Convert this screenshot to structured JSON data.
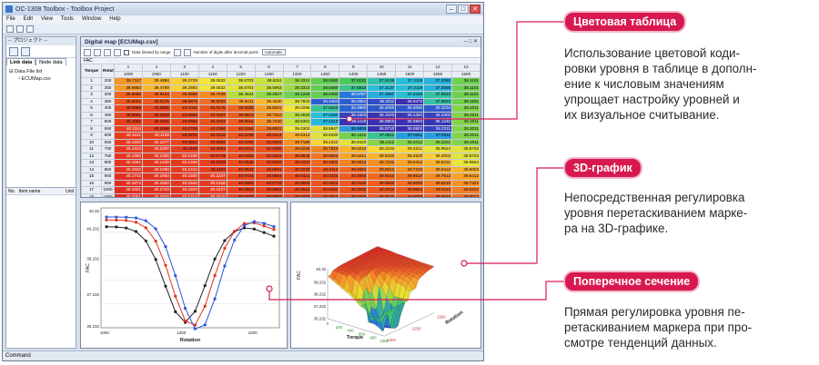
{
  "window": {
    "title": "OC-1308 Toolbox - Toolbox Project",
    "menu": [
      "File",
      "Edit",
      "View",
      "Tools",
      "Window",
      "Help"
    ],
    "status": "Command"
  },
  "left_panel": {
    "header": "-- プロジェクト --",
    "tabs": [
      "Link data",
      "Node data"
    ],
    "tree_root": "Data File list",
    "tree_leaf": "ECUMap.csv",
    "grid_headers": [
      "No.",
      "Item name",
      "Unit"
    ]
  },
  "map": {
    "title": "Digital map [ECUMap.csv]",
    "window_btns": "– □ ✕",
    "check_label": "Data limited by range",
    "digits_label": "Number of digits after decimal point:",
    "digits_value": "Automatic",
    "fac_label": "FAC",
    "row_axis": "Torque",
    "col_axis": "Rotation",
    "col_index": [
      "1",
      "2",
      "3",
      "4",
      "5",
      "6",
      "7",
      "8",
      "9",
      "10",
      "11",
      "12",
      "13"
    ],
    "col_values": [
      "1000",
      "1050",
      "1100",
      "1150",
      "1200",
      "1250",
      "1300",
      "1350",
      "1400",
      "1450",
      "1500",
      "1550",
      "1600"
    ],
    "row_index": [
      "1",
      "2",
      "3",
      "4",
      "5",
      "6",
      "7",
      "8",
      "9",
      "10",
      "11",
      "12",
      "13",
      "14",
      "15",
      "16",
      "17",
      "18",
      "19",
      "20"
    ],
    "row_values": [
      "200",
      "250",
      "300",
      "350",
      "400",
      "450",
      "500",
      "550",
      "600",
      "650",
      "700",
      "750",
      "800",
      "850",
      "900",
      "950",
      "1000",
      "1050",
      "1100",
      "1150"
    ],
    "rows": [
      [
        "39.7117",
        "39.4884",
        "39.2729",
        "39.0532",
        "38.8703",
        "38.6311",
        "38.3310",
        "38.0480",
        "37.9131",
        "37.5138",
        "37.3119",
        "37.2050",
        "38.1101"
      ],
      [
        "39.6684",
        "39.4789",
        "39.2593",
        "39.0532",
        "38.8703",
        "38.5963",
        "38.3310",
        "38.0480",
        "37.6810",
        "37.3137",
        "37.3119",
        "37.2050",
        "38.1101"
      ],
      [
        "39.9585",
        "39.9423",
        "39.8899",
        "39.7649",
        "38.4624",
        "38.2827",
        "38.1220",
        "38.0480",
        "36.6787",
        "37.1897",
        "37.3449",
        "37.5524",
        "38.1101"
      ],
      [
        "40.0022",
        "40.0175",
        "39.9879",
        "39.9033",
        "39.6411",
        "39.4530",
        "38.7823",
        "36.4453",
        "36.4551",
        "36.3211",
        "36.0473",
        "37.5524",
        "38.1101"
      ],
      [
        "40.0659",
        "40.0666",
        "40.0040",
        "40.0176",
        "39.9485",
        "39.6531",
        "39.0285",
        "37.6220",
        "36.4960",
        "36.4000",
        "36.4045",
        "36.4234",
        "38.2011"
      ],
      [
        "40.0861",
        "40.1010",
        "40.0584",
        "40.0267",
        "39.9813",
        "39.7310",
        "38.4620",
        "37.3180",
        "36.2403",
        "36.1020",
        "36.1340",
        "36.2402",
        "38.2011"
      ],
      [
        "40.1081",
        "40.1021",
        "40.0663",
        "40.0334",
        "39.9916",
        "39.7340",
        "38.5401",
        "37.2410",
        "36.1120",
        "36.0802",
        "36.0802",
        "36.1240",
        "38.2011"
      ],
      [
        "40.1114",
        "40.1066",
        "40.0709",
        "40.0394",
        "40.0154",
        "39.8921",
        "39.0302",
        "38.8647",
        "36.9803",
        "36.0710",
        "36.0802",
        "36.2211",
        "38.2011"
      ],
      [
        "40.1241",
        "40.1159",
        "40.0878",
        "40.0418",
        "40.0239",
        "40.0212",
        "39.5313",
        "38.8430",
        "38.1242",
        "37.6511",
        "37.0311",
        "37.0311",
        "38.2011"
      ],
      [
        "40.1332",
        "40.1277",
        "40.0912",
        "40.0502",
        "40.0306",
        "40.0283",
        "39.7180",
        "39.2422",
        "38.8420",
        "38.2112",
        "38.2012",
        "38.2222",
        "38.2011"
      ],
      [
        "40.1413",
        "40.1297",
        "40.1103",
        "40.0563",
        "40.0412",
        "40.0360",
        "39.8220",
        "39.7823",
        "39.5234",
        "39.2103",
        "39.2221",
        "38.9524",
        "38.8703"
      ],
      [
        "40.1480",
        "40.1388",
        "40.1240",
        "40.0743",
        "40.0483",
        "40.0421",
        "39.9648",
        "39.8634",
        "39.6241",
        "39.5340",
        "39.4520",
        "39.3003",
        "38.8703"
      ],
      [
        "40.1551",
        "40.1439",
        "40.1340",
        "40.1023",
        "40.0530",
        "40.0483",
        "40.0102",
        "39.9303",
        "39.8012",
        "39.7242",
        "39.6412",
        "39.5231",
        "38.9524"
      ],
      [
        "40.1622",
        "40.1490",
        "40.1412",
        "40.1103",
        "40.0633",
        "40.0541",
        "40.0233",
        "40.0110",
        "39.9324",
        "39.8012",
        "39.7222",
        "39.6412",
        "39.5003"
      ],
      [
        "40.1743",
        "40.1583",
        "40.1500",
        "40.1247",
        "40.0724",
        "40.0654",
        "40.0421",
        "40.0234",
        "40.0003",
        "39.9210",
        "39.8510",
        "39.7512",
        "39.6412"
      ],
      [
        "40.1874",
        "40.1662",
        "40.1544",
        "40.1318",
        "40.0803",
        "40.0733",
        "40.0502",
        "40.0324",
        "40.0130",
        "39.9803",
        "39.9000",
        "39.8210",
        "39.7322"
      ],
      [
        "40.1921",
        "40.1743",
        "40.1633",
        "40.1427",
        "40.0912",
        "40.0854",
        "40.0612",
        "40.0432",
        "40.0232",
        "40.0033",
        "39.9824",
        "39.9112",
        "39.8312"
      ],
      [
        "40.2051",
        "40.1832",
        "40.1714",
        "40.1510",
        "40.1033",
        "40.0922",
        "40.0734",
        "40.0512",
        "40.0334",
        "40.0103",
        "40.0033",
        "39.9634",
        "39.9012"
      ],
      [
        "40.2142",
        "40.1921",
        "40.1833",
        "40.1600",
        "40.1121",
        "40.1020",
        "40.0813",
        "40.0634",
        "40.0420",
        "40.0212",
        "40.0110",
        "40.0034",
        "39.9524"
      ],
      [
        "40.2210",
        "40.2010",
        "40.1921",
        "40.1722",
        "40.1234",
        "40.1121",
        "40.0912",
        "40.0722",
        "40.0521",
        "40.0330",
        "40.0212",
        "40.0103",
        "40.0033"
      ]
    ]
  },
  "cross_section": {
    "ylabel": "FAC",
    "xlabel": "Rotation",
    "yticks": [
      "40.32",
      "40.232",
      "39.232",
      "37.232",
      "36.232"
    ],
    "xticks": [
      "1000",
      "1250",
      "1500"
    ],
    "colors": {
      "black": "#222222",
      "red": "#e0321e",
      "blue": "#2e55d6"
    }
  },
  "surface": {
    "ylabel": "FAC",
    "xlabel": "Torque",
    "zlabel": "Rotation",
    "zticks": [
      "40.32",
      "39.232",
      "38.232",
      "37.232",
      "36.232"
    ],
    "torque_ticks": [
      "0",
      "200",
      "400",
      "600",
      "800",
      "1000"
    ],
    "rotation_ticks": [
      "1000",
      "1250",
      "1500"
    ]
  },
  "callouts": [
    {
      "badge": "Цветовая таблица",
      "text": [
        "Использование цветовой коди-",
        "ровки уровня в таблице в дополн-",
        "ение к числовым значениям",
        "упрощает настройку уровней и",
        "их визуальное считывание."
      ]
    },
    {
      "badge": "3D-график",
      "text": [
        "Непосредственная регулировка",
        "уровня перетаскиванием марке-",
        "ра на 3D-графике."
      ]
    },
    {
      "badge": "Поперечное сечение",
      "text": [
        "Прямая регулировка уровня пе-",
        "ретаскиванием маркера при про-",
        "смотре тенденций данных."
      ]
    }
  ],
  "accent": "#d7194f"
}
